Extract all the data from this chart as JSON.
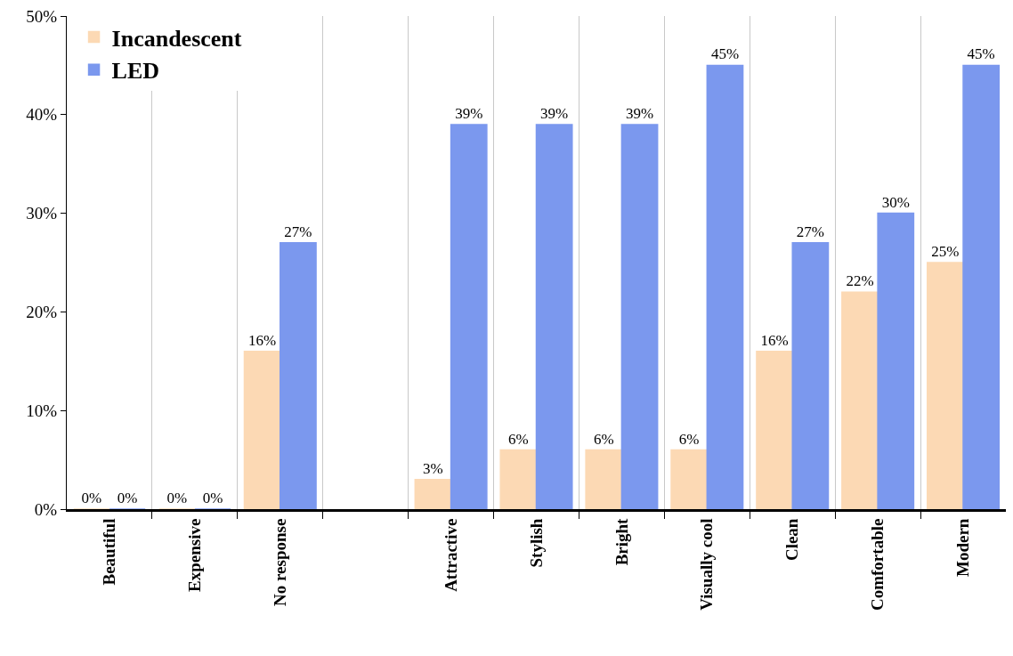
{
  "chart_data": {
    "type": "bar",
    "categories": [
      "Beautiful",
      "Expensive",
      "No response",
      null,
      "Attractive",
      "Stylish",
      "Bright",
      "Visually cool",
      "Clean",
      "Comfortable",
      "Modern"
    ],
    "series": [
      {
        "name": "Incandescent",
        "color": "#fcd9b4",
        "values": [
          0,
          0,
          16,
          null,
          3,
          6,
          6,
          6,
          16,
          22,
          25
        ],
        "value_labels": [
          "0%",
          "0%",
          "16%",
          null,
          "3%",
          "6%",
          "6%",
          "6%",
          "16%",
          "22%",
          "25%"
        ]
      },
      {
        "name": "LED",
        "color": "#7b98ee",
        "values": [
          0,
          0,
          27,
          null,
          39,
          39,
          39,
          45,
          27,
          30,
          45
        ],
        "value_labels": [
          "0%",
          "0%",
          "27%",
          null,
          "39%",
          "39%",
          "39%",
          "45%",
          "27%",
          "30%",
          "45%"
        ]
      }
    ],
    "ylim": [
      0,
      50
    ],
    "yticks": [
      {
        "value": 0,
        "label": "0%"
      },
      {
        "value": 10,
        "label": "10%"
      },
      {
        "value": 20,
        "label": "20%"
      },
      {
        "value": 30,
        "label": "30%"
      },
      {
        "value": 40,
        "label": "40%"
      },
      {
        "value": 50,
        "label": "50%"
      }
    ],
    "grid": "x",
    "legend": "top left"
  }
}
